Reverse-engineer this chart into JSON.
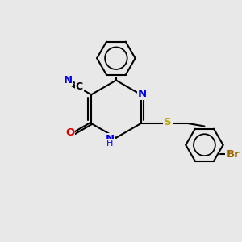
{
  "bg_color": "#e8e8e8",
  "bond_color": "#000000",
  "bond_lw": 1.5,
  "atom_colors": {
    "N": "#0000ee",
    "O": "#dd0000",
    "S": "#bbaa00",
    "Br": "#996600",
    "C": "#000000"
  },
  "figsize": [
    3.0,
    3.0
  ],
  "dpi": 100,
  "xlim": [
    -1,
    9
  ],
  "ylim": [
    -1,
    9
  ]
}
